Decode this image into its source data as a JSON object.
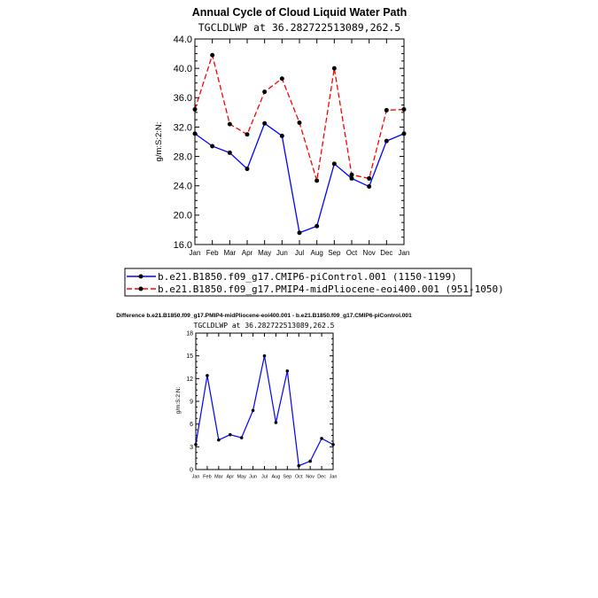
{
  "chart_data": [
    {
      "type": "line",
      "title": "Annual Cycle of Cloud Liquid Water Path",
      "subtitle": "TGCLDLWP  at  36.282722513089,262.5",
      "xlabel": "",
      "ylabel": "g/m:S:2:N:",
      "ylim": [
        16.0,
        44.0
      ],
      "yticks": [
        "16.0",
        "20.0",
        "24.0",
        "28.0",
        "32.0",
        "36.0",
        "40.0",
        "44.0"
      ],
      "yticks_values": [
        16,
        20,
        24,
        28,
        32,
        36,
        40,
        44
      ],
      "categories": [
        "Jan",
        "Feb",
        "Mar",
        "Apr",
        "May",
        "Jun",
        "Jul",
        "Aug",
        "Sep",
        "Oct",
        "Nov",
        "Dec",
        "Jan"
      ],
      "series": [
        {
          "name": "b.e21.B1850.f09_g17.CMIP6-piControl.001  (1150-1199)",
          "color": "#0000ff",
          "style": "solid",
          "values": [
            31.1,
            29.4,
            28.5,
            26.3,
            32.5,
            30.8,
            17.6,
            18.5,
            27.0,
            25.0,
            23.9,
            30.1,
            31.1
          ]
        },
        {
          "name": "b.e21.B1850.f09_g17.PMIP4-midPliocene-eoi400.001  (951-1050)",
          "color": "#ff0000",
          "style": "dashed",
          "values": [
            34.4,
            41.8,
            32.4,
            31.0,
            36.8,
            38.6,
            32.6,
            24.7,
            40.0,
            25.5,
            25.0,
            34.3,
            34.4
          ]
        }
      ],
      "legend": "bottom"
    },
    {
      "type": "line",
      "title": "Difference b.e21.B1850.f09_g17.PMIP4-midPliocene-eoi400.001 - b.e21.B1850.f09_g17.CMIP6-piControl.001",
      "subtitle": "TGCLDLWP  at  36.282722513089,262.5",
      "xlabel": "",
      "ylabel": "g/m:S:2:N:",
      "ylim": [
        0,
        18
      ],
      "yticks": [
        "0",
        "3",
        "6",
        "9",
        "12",
        "15",
        "18"
      ],
      "yticks_values": [
        0,
        3,
        6,
        9,
        12,
        15,
        18
      ],
      "categories": [
        "Jan",
        "Feb",
        "Mar",
        "Apr",
        "May",
        "Jun",
        "Jul",
        "Aug",
        "Sep",
        "Oct",
        "Nov",
        "Dec",
        "Jan"
      ],
      "series": [
        {
          "name": "difference",
          "color": "#0000ff",
          "style": "solid",
          "values": [
            3.3,
            12.4,
            3.9,
            4.6,
            4.2,
            7.8,
            15.0,
            6.2,
            13.0,
            0.5,
            1.1,
            4.1,
            3.3
          ]
        }
      ]
    }
  ]
}
